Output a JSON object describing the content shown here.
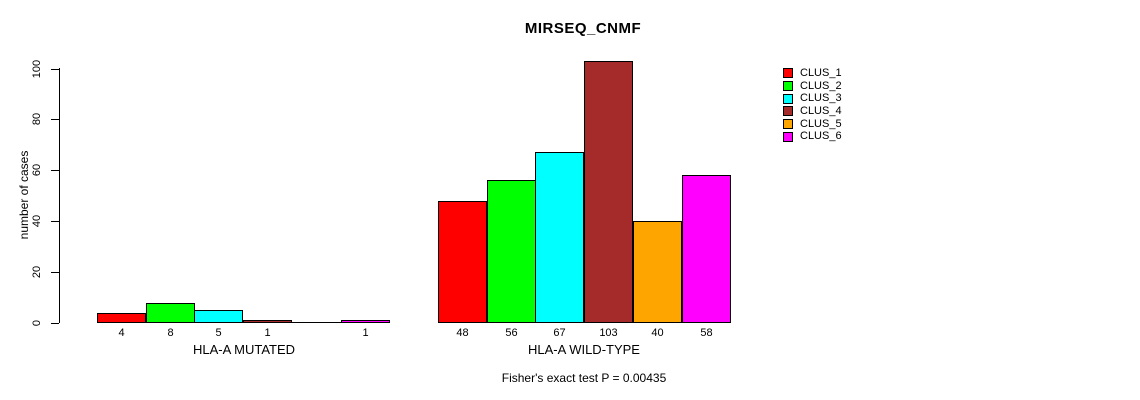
{
  "chart_data": {
    "type": "bar",
    "title": "MIRSEQ_CNMF",
    "ylabel": "number of cases",
    "ylim": [
      0,
      100
    ],
    "yticks": [
      0,
      20,
      40,
      60,
      80,
      100
    ],
    "grid": false,
    "legend_position": "right",
    "categories": [
      "HLA-A MUTATED",
      "HLA-A WILD-TYPE"
    ],
    "series": [
      {
        "name": "CLUS_1",
        "color": "#ff0000",
        "values": [
          4,
          48
        ]
      },
      {
        "name": "CLUS_2",
        "color": "#00ff00",
        "values": [
          8,
          56
        ]
      },
      {
        "name": "CLUS_3",
        "color": "#00ffff",
        "values": [
          5,
          67
        ]
      },
      {
        "name": "CLUS_4",
        "color": "#a52a2a",
        "values": [
          1,
          103
        ]
      },
      {
        "name": "CLUS_5",
        "color": "#ffa500",
        "values": [
          0,
          40
        ]
      },
      {
        "name": "CLUS_6",
        "color": "#ff00ff",
        "values": [
          1,
          58
        ]
      }
    ],
    "bar_labels": [
      [
        "4",
        "8",
        "5",
        "1",
        "",
        "1"
      ],
      [
        "48",
        "56",
        "67",
        "103",
        "40",
        "58"
      ]
    ],
    "annotation": "Fisher's exact test P = 0.00435"
  }
}
